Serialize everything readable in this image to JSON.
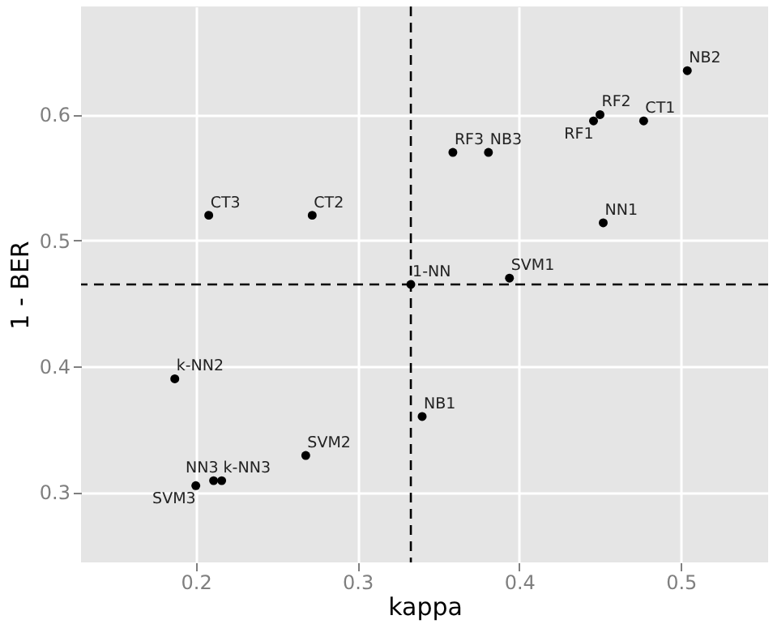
{
  "chart_data": {
    "type": "scatter",
    "xlabel": "kappa",
    "ylabel": "1 - BER",
    "x": [
      0.504,
      0.45,
      0.446,
      0.477,
      0.359,
      0.381,
      0.208,
      0.272,
      0.452,
      0.333,
      0.394,
      0.187,
      0.34,
      0.268,
      0.211,
      0.216,
      0.2
    ],
    "series": [
      {
        "color": "#000000",
        "values": [
          0.635,
          0.6,
          0.595,
          0.595,
          0.57,
          0.57,
          0.52,
          0.52,
          0.514,
          0.465,
          0.47,
          0.39,
          0.36,
          0.329,
          0.309,
          0.309,
          0.305
        ]
      }
    ],
    "annotations": [
      {
        "text": "NB2",
        "x": 0.504,
        "y": 0.635
      },
      {
        "text": "RF2",
        "x": 0.45,
        "y": 0.6
      },
      {
        "text": "RF1",
        "x": 0.446,
        "y": 0.595
      },
      {
        "text": "CT1",
        "x": 0.477,
        "y": 0.595
      },
      {
        "text": "RF3",
        "x": 0.359,
        "y": 0.57
      },
      {
        "text": "NB3",
        "x": 0.381,
        "y": 0.57
      },
      {
        "text": "CT3",
        "x": 0.208,
        "y": 0.52
      },
      {
        "text": "CT2",
        "x": 0.272,
        "y": 0.52
      },
      {
        "text": "NN1",
        "x": 0.452,
        "y": 0.514
      },
      {
        "text": "1-NN",
        "x": 0.333,
        "y": 0.465
      },
      {
        "text": "SVM1",
        "x": 0.394,
        "y": 0.47
      },
      {
        "text": "k-NN2",
        "x": 0.187,
        "y": 0.39
      },
      {
        "text": "NB1",
        "x": 0.34,
        "y": 0.36
      },
      {
        "text": "SVM2",
        "x": 0.268,
        "y": 0.329
      },
      {
        "text": "NN3",
        "x": 0.211,
        "y": 0.309
      },
      {
        "text": "k-NN3",
        "x": 0.216,
        "y": 0.309
      },
      {
        "text": "SVM3",
        "x": 0.2,
        "y": 0.305
      }
    ],
    "ref_lines": [
      {
        "axis": "x",
        "value": 0.333,
        "line_style": "dashed",
        "color": "#000000"
      },
      {
        "axis": "y",
        "value": 0.465,
        "line_style": "dashed",
        "color": "#000000"
      }
    ],
    "xlim": [
      0.129,
      0.554
    ],
    "xticks": [
      0.2,
      0.3,
      0.4,
      0.5
    ],
    "ylim": [
      0.244,
      0.686
    ],
    "yticks": [
      0.3,
      0.4,
      0.5,
      0.6
    ],
    "grid": true,
    "marker": "circle"
  }
}
